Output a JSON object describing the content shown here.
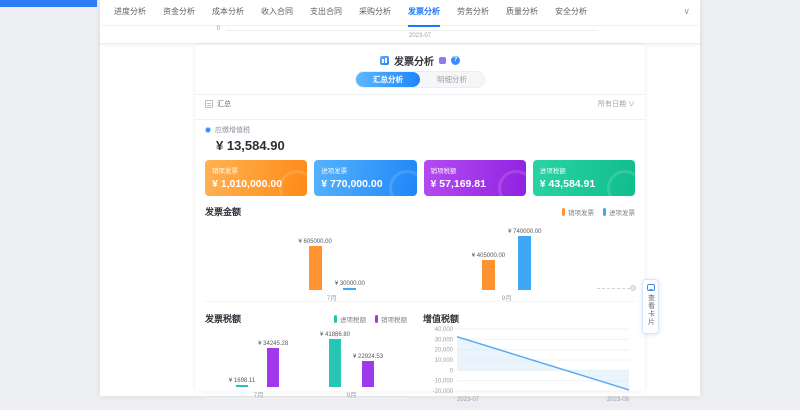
{
  "accent_color": "#1677ff",
  "nav": {
    "tabs": [
      {
        "label": "进度分析",
        "active": false
      },
      {
        "label": "资金分析",
        "active": false
      },
      {
        "label": "成本分析",
        "active": false
      },
      {
        "label": "收入合同",
        "active": false
      },
      {
        "label": "支出合同",
        "active": false
      },
      {
        "label": "采购分析",
        "active": false
      },
      {
        "label": "发票分析",
        "active": true
      },
      {
        "label": "劳务分析",
        "active": false
      },
      {
        "label": "质量分析",
        "active": false
      },
      {
        "label": "安全分析",
        "active": false
      }
    ],
    "collapse_chevron": "∨"
  },
  "scrolled_chart_remnant": {
    "y_tick_label": "0",
    "x_axis_label": "2023-07"
  },
  "header": {
    "title": "发票分析",
    "help": "?"
  },
  "view_toggle": {
    "options": [
      {
        "label": "汇总分析",
        "active": true
      },
      {
        "label": "明细分析",
        "active": false
      }
    ]
  },
  "toolbar": {
    "left_label": "汇总",
    "date_filter": "所有日期",
    "chevron": "∨"
  },
  "kpi": {
    "label": "应缴增值税",
    "value": "¥ 13,584.90"
  },
  "summary_cards": [
    {
      "label": "销项发票",
      "value": "¥ 1,010,000.00",
      "gradient": [
        "#ffb253",
        "#ff8a17"
      ]
    },
    {
      "label": "进项发票",
      "value": "¥ 770,000.00",
      "gradient": [
        "#55b3fc",
        "#1f86f8"
      ]
    },
    {
      "label": "销项税额",
      "value": "¥ 57,169.81",
      "gradient": [
        "#b44cf0",
        "#8f22e2"
      ]
    },
    {
      "label": "进项税额",
      "value": "¥ 43,584.91",
      "gradient": [
        "#2bd3a4",
        "#0fbd8d"
      ]
    }
  ],
  "chart_data": [
    {
      "type": "bar",
      "title": "发票金额",
      "categories": [
        "7月",
        "9月"
      ],
      "series": [
        {
          "name": "销项发票",
          "color": "#ff9231",
          "values": [
            605000.0,
            405000.0
          ],
          "labels": [
            "¥ 605000.00",
            "¥ 405000.00"
          ]
        },
        {
          "name": "进项发票",
          "color": "#3da8f5",
          "values": [
            30000.0,
            740000.0
          ],
          "labels": [
            "¥ 30000.00",
            "¥ 740000.00"
          ]
        }
      ],
      "legend_position": "top-right",
      "grid": false
    },
    {
      "type": "bar",
      "title": "发票税额",
      "categories": [
        "7月",
        "9月"
      ],
      "series": [
        {
          "name": "进项税额",
          "color": "#27c5b8",
          "values": [
            1698.11,
            41886.8
          ],
          "labels": [
            "¥ 1698.11",
            "¥ 41886.80"
          ]
        },
        {
          "name": "销项税额",
          "color": "#a238ec",
          "values": [
            34245.28,
            22924.53
          ],
          "labels": [
            "¥ 34245.28",
            "¥ 22924.53"
          ]
        }
      ],
      "legend_position": "top-right",
      "grid": false
    },
    {
      "type": "line",
      "title": "增值税额",
      "x": [
        "2023-07",
        "2023-09"
      ],
      "values": [
        32547.17,
        -18962.27
      ],
      "y_ticks": [
        40000,
        30000,
        20000,
        10000,
        0,
        -10000,
        -20000
      ],
      "y_tick_labels": [
        "40,000",
        "30,000",
        "20,000",
        "10,000",
        "0",
        "-10,000",
        "-20,000"
      ],
      "ylim": [
        -20000,
        40000
      ],
      "color": "#57a8f0",
      "area_fill": "#cfe7fb",
      "grid": true,
      "legend_position": "none"
    }
  ],
  "floating_card_button": {
    "label": "查看卡片"
  }
}
